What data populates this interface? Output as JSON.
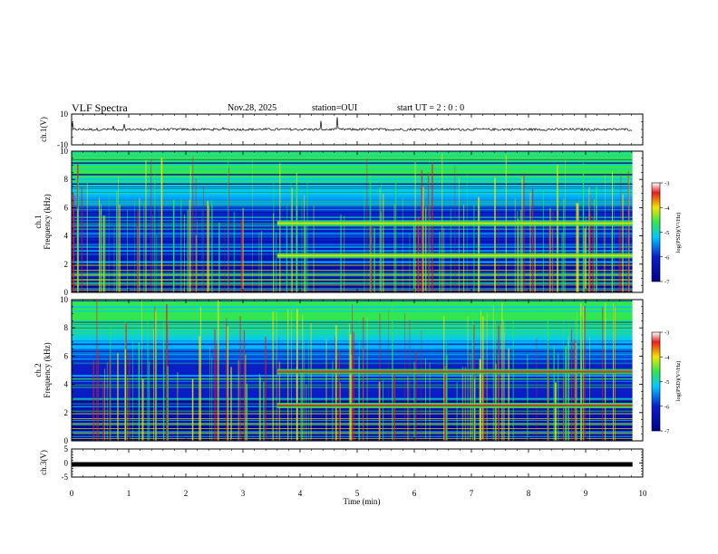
{
  "header": {
    "title": "VLF Spectra",
    "date": "Nov.28, 2025",
    "station": "station=OUI",
    "start": "start UT =  2 : 0  : 0"
  },
  "chart_data": [
    {
      "type": "line",
      "name": "ch1-waveform",
      "ylabel": "ch.1(V)",
      "ylim": [
        -10,
        10
      ],
      "yticks": [
        "10",
        "-10"
      ]
    },
    {
      "type": "heatmap",
      "name": "ch1-spectrogram",
      "ylabel": "ch.1\nFrequency (kHz)",
      "ylabel_line1": "ch.1",
      "ylabel_line2": "Frequency (kHz)",
      "ylim": [
        0,
        10
      ],
      "yticks": [
        "0",
        "2",
        "4",
        "6",
        "8",
        "10"
      ],
      "emission_bands_khz": [
        4.9,
        2.6
      ],
      "emission_start_min": 3.6
    },
    {
      "type": "heatmap",
      "name": "ch2-spectrogram",
      "ylabel_line1": "ch.2",
      "ylabel_line2": "Frequency (kHz)",
      "ylim": [
        0,
        10
      ],
      "yticks": [
        "0",
        "2",
        "4",
        "6",
        "8",
        "10"
      ],
      "emission_bands_khz": [
        4.9,
        2.5
      ],
      "emission_start_min": 3.6
    },
    {
      "type": "line",
      "name": "ch3-waveform",
      "ylabel": "ch.3(V)",
      "ylim": [
        -5,
        5
      ],
      "yticks": [
        "5",
        "0",
        "-5"
      ],
      "level": -0.5
    }
  ],
  "xaxis": {
    "label": "Time (min)",
    "ticks": [
      "0",
      "1",
      "2",
      "3",
      "4",
      "5",
      "6",
      "7",
      "8",
      "9",
      "10"
    ],
    "xlim": [
      0,
      10
    ],
    "data_end_min": 9.82
  },
  "colorbar": {
    "label": "log(PSD)(V²/Hz)",
    "ticks": [
      "-3",
      "-4",
      "-5",
      "-6",
      "-7"
    ],
    "range": [
      -7,
      -3
    ]
  },
  "colors": {
    "dark_blue": "#00008c",
    "blue": "#0a1ec8",
    "cyan": "#00c8ff",
    "green": "#32e650",
    "yellow": "#f0e600",
    "red": "#e61e1e"
  }
}
